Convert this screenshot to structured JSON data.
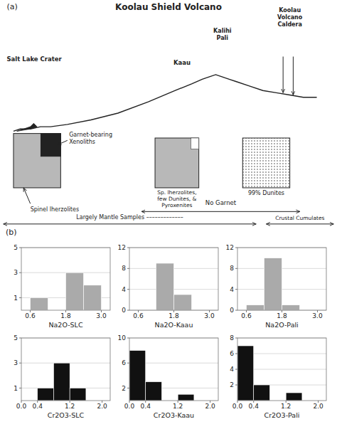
{
  "chart_data": [
    {
      "type": "diagram",
      "title": "Koolau Shield Volcano",
      "annotations": [
        "(a)",
        "Salt Lake Crater",
        "Kaau",
        "Kalihi\nPali",
        "Koolau\nVolcano\nCaldera",
        "Garnet-bearing\nXenoliths",
        "Spinel lherzolites",
        "Sp. lherzolites,\nfew Dunites, &\nPyroxenites",
        "99% Dunites",
        "No Garnet",
        "Largely Mantle Samples –––––––––––––",
        "Crustal Cumulates",
        "(b)"
      ]
    },
    {
      "type": "histogram",
      "xlabel": "Na2O-SLC",
      "bins": [
        0.3,
        0.6,
        1.2,
        1.8,
        2.4,
        3.0
      ],
      "values": [
        0,
        1,
        0,
        3,
        2
      ],
      "color": "#aaaaaa",
      "xlim": [
        0.3,
        3.3
      ],
      "xticks": [
        0.6,
        1.8,
        {
          "value": 3.0,
          "label": "3.0"
        }
      ],
      "ylim": [
        0,
        5
      ],
      "yticks": [
        1,
        3,
        5
      ],
      "grid": true
    },
    {
      "type": "histogram",
      "xlabel": "Na2O-Kaau",
      "bins": [
        0.3,
        0.6,
        1.2,
        1.8,
        2.4,
        3.0
      ],
      "values": [
        0,
        0,
        9,
        3,
        0
      ],
      "color": "#aaaaaa",
      "xlim": [
        0.3,
        3.3
      ],
      "xticks": [
        0.6,
        1.8,
        {
          "value": 3.0,
          "label": "3.0"
        }
      ],
      "ylim": [
        0,
        12
      ],
      "yticks": [
        0,
        4,
        8,
        12
      ],
      "grid": true
    },
    {
      "type": "histogram",
      "xlabel": "Na2O-Pali",
      "bins": [
        0.3,
        0.6,
        1.2,
        1.8,
        2.4,
        3.0
      ],
      "values": [
        0,
        1,
        10,
        1,
        0
      ],
      "color": "#aaaaaa",
      "xlim": [
        0.3,
        3.3
      ],
      "xticks": [
        0.6,
        1.8,
        {
          "value": 3.0,
          "label": "3.0"
        }
      ],
      "ylim": [
        0,
        12
      ],
      "yticks": [
        0,
        4,
        8,
        12
      ],
      "grid": true
    },
    {
      "type": "histogram",
      "xlabel": "Cr2O3-SLC",
      "bins": [
        0.0,
        0.4,
        0.8,
        1.2,
        1.6,
        2.0
      ],
      "values": [
        0,
        1,
        3,
        1,
        0
      ],
      "color": "#111111",
      "xlim": [
        0.0,
        2.2
      ],
      "xticks": [
        {
          "value": 0.0,
          "label": "0.0"
        },
        0.4,
        1.2,
        {
          "value": 2.0,
          "label": "2.0"
        }
      ],
      "ylim": [
        0,
        5
      ],
      "yticks": [
        1,
        3,
        5
      ],
      "grid": true
    },
    {
      "type": "histogram",
      "xlabel": "Cr2O3-Kaau",
      "bins": [
        0.0,
        0.4,
        0.8,
        1.2,
        1.6,
        2.0
      ],
      "values": [
        8,
        3,
        0,
        1,
        0
      ],
      "color": "#111111",
      "xlim": [
        0.0,
        2.2
      ],
      "xticks": [
        {
          "value": 0.0,
          "label": "0.0"
        },
        0.4,
        1.2,
        {
          "value": 2.0,
          "label": "2.0"
        }
      ],
      "ylim": [
        0,
        10
      ],
      "yticks": [
        2,
        6,
        10
      ],
      "grid": true
    },
    {
      "type": "histogram",
      "xlabel": "Cr2O3-Pali",
      "bins": [
        0.0,
        0.4,
        0.8,
        1.2,
        1.6,
        2.0
      ],
      "values": [
        7,
        2,
        0,
        1,
        0
      ],
      "color": "#111111",
      "xlim": [
        0.0,
        2.2
      ],
      "xticks": [
        {
          "value": 0.0,
          "label": "0.0"
        },
        0.4,
        1.2,
        {
          "value": 2.0,
          "label": "2.0"
        }
      ],
      "ylim": [
        0,
        8
      ],
      "yticks": [
        2,
        4,
        6,
        8
      ],
      "grid": true
    }
  ]
}
